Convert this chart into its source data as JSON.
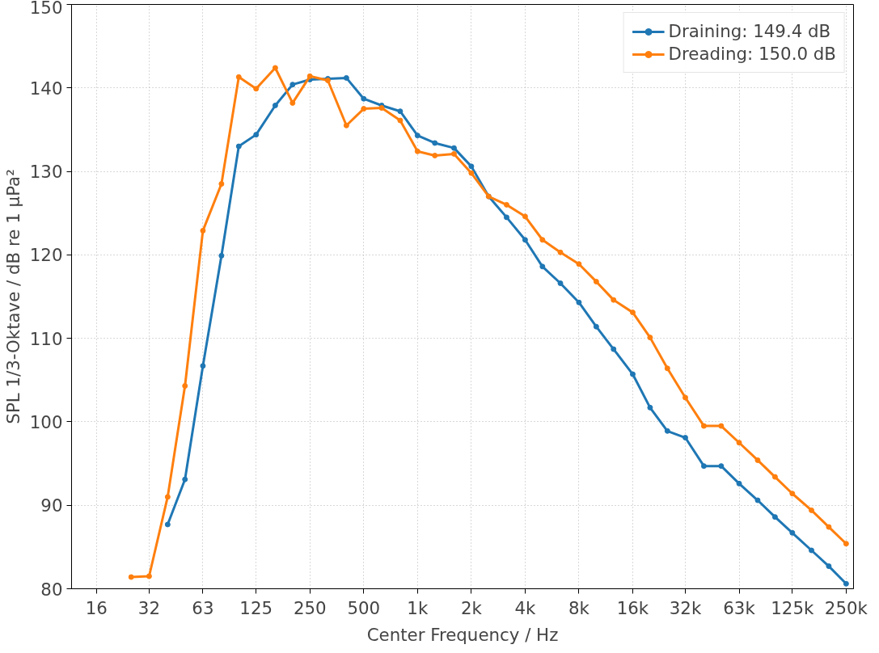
{
  "chart_data": {
    "type": "line",
    "xlabel": "Center Frequency / Hz",
    "ylabel": "SPL 1/3-Oktave / dB re 1 µPa²",
    "log": "x",
    "grid": true,
    "legend": "top right",
    "marker": "circle",
    "line_style": "solid",
    "xlim": [
      11.6,
      275000
    ],
    "ylim": [
      80,
      150
    ],
    "xticks": [
      16,
      {
        "value": 31.5,
        "label": "32"
      },
      63,
      125,
      250,
      500,
      {
        "value": 1000,
        "label": "1k"
      },
      {
        "value": 2000,
        "label": "2k"
      },
      {
        "value": 4000,
        "label": "4k"
      },
      {
        "value": 8000,
        "label": "8k"
      },
      {
        "value": 16000,
        "label": "16k"
      },
      {
        "value": 31500,
        "label": "32k"
      },
      {
        "value": 63000,
        "label": "63k"
      },
      {
        "value": 125000,
        "label": "125k"
      },
      {
        "value": 250000,
        "label": "250k"
      }
    ],
    "yticks": [
      80,
      90,
      100,
      110,
      120,
      130,
      140,
      150
    ],
    "series": [
      {
        "name": "Draining: 149.4 dB",
        "color": "#1f77b4",
        "x": [
          40,
          50,
          63,
          80,
          100,
          125,
          160,
          200,
          250,
          315,
          400,
          500,
          630,
          800,
          1000,
          1250,
          1600,
          2000,
          2500,
          3150,
          4000,
          5000,
          6300,
          8000,
          10000,
          12500,
          16000,
          20000,
          25000,
          31500,
          40000,
          50000,
          63000,
          80000,
          100000,
          125000,
          160000,
          200000,
          250000
        ],
        "values": [
          87.7,
          93.1,
          106.7,
          119.9,
          133.0,
          134.4,
          137.9,
          140.4,
          141.0,
          141.1,
          141.2,
          138.7,
          137.9,
          137.2,
          134.3,
          133.4,
          132.8,
          130.6,
          127.0,
          124.5,
          121.8,
          118.6,
          116.6,
          114.3,
          111.4,
          108.7,
          105.7,
          101.7,
          98.9,
          98.1,
          94.7,
          94.7,
          92.6,
          90.6,
          88.6,
          86.7,
          84.6,
          82.7,
          80.6
        ]
      },
      {
        "name": "Dreading: 150.0 dB",
        "color": "#ff7f0e",
        "x": [
          25,
          31.5,
          40,
          50,
          63,
          80,
          100,
          125,
          160,
          200,
          250,
          315,
          400,
          500,
          630,
          800,
          1000,
          1250,
          1600,
          2000,
          2500,
          3150,
          4000,
          5000,
          6300,
          8000,
          10000,
          12500,
          16000,
          20000,
          25000,
          31500,
          40000,
          50000,
          63000,
          80000,
          100000,
          125000,
          160000,
          200000,
          250000
        ],
        "values": [
          81.4,
          81.5,
          91.0,
          104.3,
          122.9,
          128.5,
          141.3,
          139.9,
          142.4,
          138.2,
          141.4,
          140.9,
          135.5,
          137.5,
          137.6,
          136.1,
          132.4,
          131.9,
          132.1,
          129.8,
          127.0,
          126.0,
          124.6,
          121.8,
          120.3,
          118.9,
          116.8,
          114.6,
          113.1,
          110.1,
          106.4,
          102.9,
          99.5,
          99.5,
          97.5,
          95.4,
          93.4,
          91.4,
          89.4,
          87.4,
          85.4
        ]
      }
    ]
  }
}
